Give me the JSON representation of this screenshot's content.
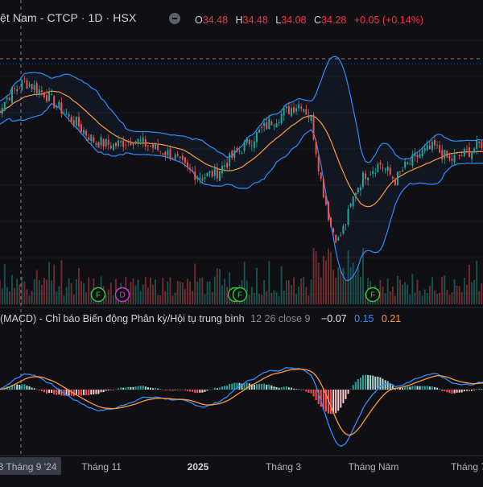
{
  "header": {
    "symbol_title": "ệt Nam - CTCP · 1D · HSX",
    "ohlc": [
      {
        "k": "O",
        "v": "34.48"
      },
      {
        "k": "H",
        "v": "34.48"
      },
      {
        "k": "L",
        "v": "34.08"
      },
      {
        "k": "C",
        "v": "34.28"
      }
    ],
    "change": "+0.05 (+0.14%)"
  },
  "macd_panel": {
    "title": "(MACD) - Chỉ báo Biến động Phân kỳ/Hội tụ trung bình",
    "params": "12 26 close 9",
    "histogram_value": "−0.07",
    "macd_value": "0.15",
    "signal_value": "0.21"
  },
  "x_axis": {
    "ticks": [
      {
        "label": "3 Tháng 9 '24",
        "bold": false,
        "highlight": true
      },
      {
        "label": "Tháng 11",
        "bold": false
      },
      {
        "label": "2025",
        "bold": true
      },
      {
        "label": "Tháng 3",
        "bold": false
      },
      {
        "label": "Tháng Năm",
        "bold": false
      },
      {
        "label": "Tháng 7",
        "bold": false
      }
    ]
  },
  "events": [
    {
      "letter": "F",
      "type": "financial"
    },
    {
      "letter": "D",
      "type": "dividend"
    },
    {
      "letter": "F",
      "type": "financial"
    },
    {
      "letter": "F",
      "type": "financial"
    },
    {
      "letter": "F",
      "type": "financial"
    }
  ],
  "colors": {
    "background": "#0f0f14",
    "up": "#26a69a",
    "down": "#ef5350",
    "bollinger": "#2f8cff",
    "basis": "#ff9a3c",
    "macd_line": "#2f8cff",
    "signal_line": "#ff9a3c",
    "financial_event": "#2ecc40",
    "dividend_event": "#c33ec9"
  },
  "chart_data": [
    {
      "type": "candlestick",
      "title": "",
      "x_ticks": [
        "3 Tháng 9 '24",
        "Tháng 11",
        "2025",
        "Tháng 3",
        "Tháng Năm",
        "Tháng 7"
      ],
      "last_close": 34.28,
      "price_path_anchors": [
        [
          0,
          31.2
        ],
        [
          6,
          32.4
        ],
        [
          12,
          33.2
        ],
        [
          20,
          32.5
        ],
        [
          26,
          31.6
        ],
        [
          32,
          30.8
        ],
        [
          40,
          29.6
        ],
        [
          48,
          29.3
        ],
        [
          56,
          29.7
        ],
        [
          64,
          29.2
        ],
        [
          72,
          28.7
        ],
        [
          78,
          27.8
        ],
        [
          84,
          27.4
        ],
        [
          90,
          27.7
        ],
        [
          96,
          28.6
        ],
        [
          104,
          29.7
        ],
        [
          112,
          30.8
        ],
        [
          120,
          31.6
        ],
        [
          124,
          31.9
        ],
        [
          128,
          30.9
        ],
        [
          132,
          27.2
        ],
        [
          136,
          24.4
        ],
        [
          139,
          23.5
        ],
        [
          142,
          24.6
        ],
        [
          146,
          26.6
        ],
        [
          150,
          27.6
        ],
        [
          156,
          28.2
        ],
        [
          162,
          27.2
        ],
        [
          166,
          28.0
        ],
        [
          172,
          28.8
        ],
        [
          178,
          29.2
        ],
        [
          184,
          28.4
        ],
        [
          190,
          28.8
        ],
        [
          199,
          29.6
        ]
      ],
      "bollinger_bands": {
        "period": 20,
        "stddev": 2,
        "basis": "SMA"
      },
      "volume": true,
      "event_markers": [
        "F",
        "D",
        "F",
        "F",
        "F"
      ]
    },
    {
      "type": "macd",
      "params": {
        "fast": 12,
        "slow": 26,
        "source": "close",
        "signal": 9
      },
      "last": {
        "histogram": -0.07,
        "macd": 0.15,
        "signal": 0.21
      }
    }
  ]
}
